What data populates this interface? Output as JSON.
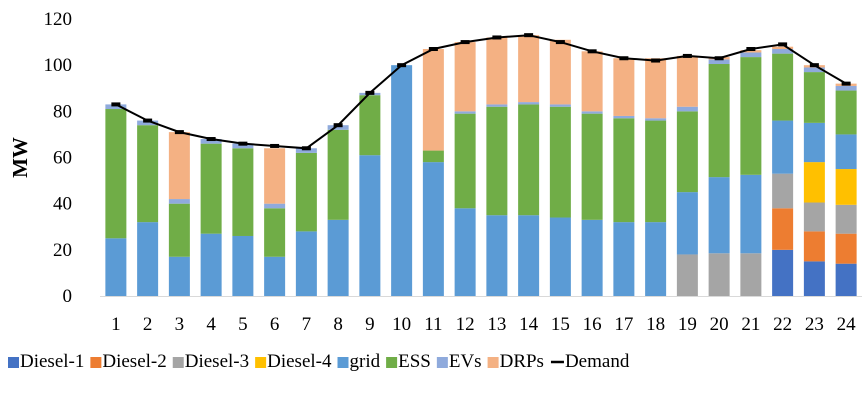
{
  "chart_data": {
    "type": "bar",
    "stacked": true,
    "title": "",
    "xlabel": "",
    "ylabel": "MW",
    "ylim": [
      0,
      120
    ],
    "yticks": [
      0,
      20,
      40,
      60,
      80,
      100,
      120
    ],
    "grid": false,
    "legend_position": "bottom",
    "categories": [
      "1",
      "2",
      "3",
      "4",
      "5",
      "6",
      "7",
      "8",
      "9",
      "10",
      "11",
      "12",
      "13",
      "14",
      "15",
      "16",
      "17",
      "18",
      "19",
      "20",
      "21",
      "22",
      "23",
      "24"
    ],
    "series": [
      {
        "name": "Diesel-1",
        "color": "#4472C4",
        "values": [
          0,
          0,
          0,
          0,
          0,
          0,
          0,
          0,
          0,
          0,
          0,
          0,
          0,
          0,
          0,
          0,
          0,
          0,
          0,
          0,
          0,
          20,
          15,
          14
        ]
      },
      {
        "name": "Diesel-2",
        "color": "#ED7D31",
        "values": [
          0,
          0,
          0,
          0,
          0,
          0,
          0,
          0,
          0,
          0,
          0,
          0,
          0,
          0,
          0,
          0,
          0,
          0,
          0,
          0,
          0,
          18,
          13,
          13
        ]
      },
      {
        "name": "Diesel-3",
        "color": "#A5A5A5",
        "values": [
          0,
          0,
          0,
          0,
          0,
          0,
          0,
          0,
          0,
          0,
          0,
          0,
          0,
          0,
          0,
          0,
          0,
          0,
          18,
          18.5,
          18.5,
          15,
          12.5,
          12.5
        ]
      },
      {
        "name": "Diesel-4",
        "color": "#FFC000",
        "values": [
          0,
          0,
          0,
          0,
          0,
          0,
          0,
          0,
          0,
          0,
          0,
          0,
          0,
          0,
          0,
          0,
          0,
          0,
          0,
          0,
          0,
          0,
          17.5,
          15.5
        ]
      },
      {
        "name": "grid",
        "color": "#5B9BD5",
        "values": [
          25,
          32,
          17,
          27,
          26,
          17,
          28,
          33,
          61,
          100,
          58,
          38,
          35,
          35,
          34,
          33,
          32,
          32,
          27,
          33,
          34,
          23,
          17,
          15
        ]
      },
      {
        "name": "ESS",
        "color": "#70AD47",
        "values": [
          56,
          42,
          23,
          39,
          38,
          21,
          34,
          39,
          26,
          0,
          5,
          41,
          47,
          48,
          48,
          46,
          45,
          44,
          35,
          49,
          51,
          29,
          22,
          19
        ]
      },
      {
        "name": "EVs",
        "color": "#8FAADC",
        "values": [
          2,
          2,
          2,
          2,
          2,
          2,
          2,
          2,
          1,
          0,
          0,
          1,
          1,
          1,
          1,
          1,
          1,
          1,
          2,
          2,
          2,
          2,
          2,
          2
        ]
      },
      {
        "name": "DRPs",
        "color": "#F4B183",
        "values": [
          0,
          0,
          29,
          0,
          0,
          24,
          0,
          0,
          0,
          0,
          44,
          30,
          29,
          29,
          28,
          26,
          25,
          26,
          22,
          1,
          1,
          1,
          1,
          1
        ]
      }
    ],
    "demand": {
      "name": "Demand",
      "color": "#000000",
      "values": [
        83,
        76,
        71,
        68,
        66,
        65,
        64,
        74,
        88,
        100,
        107,
        110,
        112,
        113,
        110,
        106,
        103,
        102,
        104,
        103,
        107,
        109,
        100,
        92
      ]
    }
  }
}
